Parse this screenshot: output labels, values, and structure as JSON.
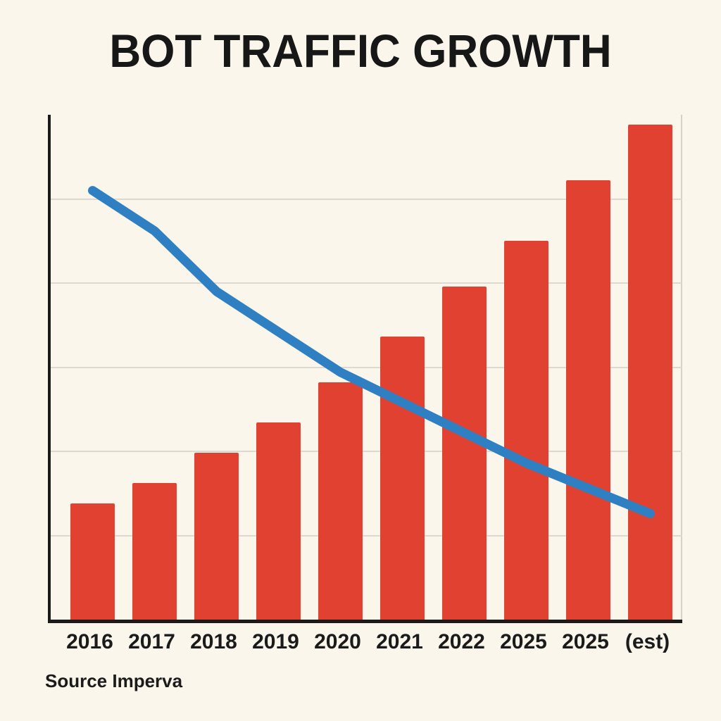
{
  "title": "BOT TRAFFIC GROWTH",
  "source": "Source Imperva",
  "colors": {
    "bar": "#e04130",
    "line": "#2f80c2",
    "background": "#faf6ec",
    "text": "#1b1b1b",
    "grid": "#ddd9d0",
    "axis": "#1a1a1a"
  },
  "chart_data": {
    "type": "bar",
    "title": "BOT TRAFFIC GROWTH",
    "source": "Source Imperva",
    "categories": [
      "2016",
      "2017",
      "2018",
      "2019",
      "2020",
      "2021",
      "2022",
      "2025",
      "2025",
      "(est)"
    ],
    "series": [
      {
        "name": "bot-traffic-bars",
        "type": "bar",
        "values": [
          23,
          27,
          33,
          39,
          47,
          56,
          66,
          75,
          87,
          98
        ]
      },
      {
        "name": "declining-trend-line",
        "type": "line",
        "values": [
          85,
          77,
          65,
          57,
          49,
          43,
          37,
          31,
          26,
          21
        ]
      }
    ],
    "xlabel": "",
    "ylabel": "",
    "ylim": [
      0,
      100
    ],
    "grid": true,
    "gridline_count": 5,
    "legend": "none"
  }
}
